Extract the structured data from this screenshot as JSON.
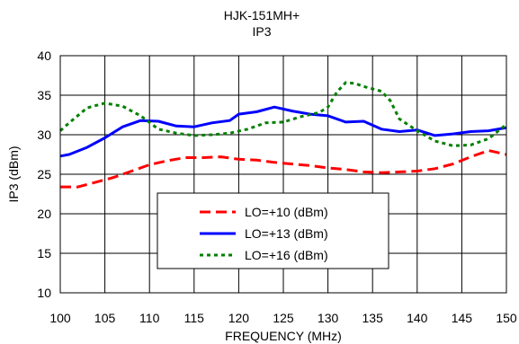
{
  "chart_data": {
    "type": "line",
    "title": "HJK-151MH+",
    "subtitle": "IP3",
    "xlabel": "FREQUENCY (MHz)",
    "ylabel": "IP3 (dBm)",
    "xlim": [
      100,
      150
    ],
    "ylim": [
      10,
      40
    ],
    "x_ticks": [
      "100",
      "105",
      "110",
      "115",
      "120",
      "125",
      "130",
      "135",
      "140",
      "145",
      "150"
    ],
    "y_ticks": [
      "10",
      "15",
      "20",
      "25",
      "30",
      "35",
      "40"
    ],
    "grid": true,
    "legend_position": "lower-left",
    "series": [
      {
        "name": "LO=+10 (dBm)",
        "color": "#ff0000",
        "dash": "dashed",
        "x": [
          100,
          102,
          104,
          106,
          108,
          110,
          112,
          114,
          116,
          118,
          120,
          122,
          124,
          126,
          128,
          130,
          132,
          134,
          136,
          138,
          140,
          142,
          144,
          146,
          148,
          150
        ],
        "y": [
          23.4,
          23.4,
          24.0,
          24.6,
          25.4,
          26.2,
          26.7,
          27.1,
          27.1,
          27.2,
          26.9,
          26.8,
          26.5,
          26.3,
          26.1,
          25.8,
          25.6,
          25.3,
          25.2,
          25.3,
          25.4,
          25.7,
          26.3,
          27.2,
          28.0,
          27.5
        ]
      },
      {
        "name": "LO=+13 (dBm)",
        "color": "#0000ff",
        "dash": "solid",
        "x": [
          100,
          101,
          103,
          105,
          107,
          109,
          111,
          113,
          115,
          117,
          119,
          120,
          122,
          124,
          126,
          128,
          130,
          132,
          134,
          136,
          138,
          140,
          142,
          144,
          146,
          148,
          150
        ],
        "y": [
          27.3,
          27.5,
          28.4,
          29.6,
          31.0,
          31.8,
          31.7,
          31.1,
          31.0,
          31.5,
          31.8,
          32.6,
          32.9,
          33.5,
          33.0,
          32.6,
          32.4,
          31.6,
          31.7,
          30.7,
          30.4,
          30.6,
          29.9,
          30.1,
          30.4,
          30.5,
          30.9
        ]
      },
      {
        "name": "LO=+16 (dBm)",
        "color": "#008000",
        "dash": "dotted",
        "x": [
          100,
          101,
          103,
          105,
          107,
          109,
          111,
          113,
          115,
          117,
          119,
          121,
          123,
          125,
          127,
          129,
          130,
          131,
          132,
          133,
          134,
          136,
          137,
          138,
          140,
          142,
          144,
          146,
          148,
          150
        ],
        "y": [
          30.5,
          31.5,
          33.4,
          34.0,
          33.6,
          32.4,
          30.7,
          30.2,
          29.9,
          30.0,
          30.2,
          30.7,
          31.5,
          31.6,
          32.3,
          32.8,
          33.5,
          35.4,
          36.6,
          36.5,
          36.1,
          35.5,
          34.3,
          32.0,
          30.5,
          29.2,
          28.6,
          28.7,
          29.5,
          31.3
        ]
      }
    ]
  }
}
